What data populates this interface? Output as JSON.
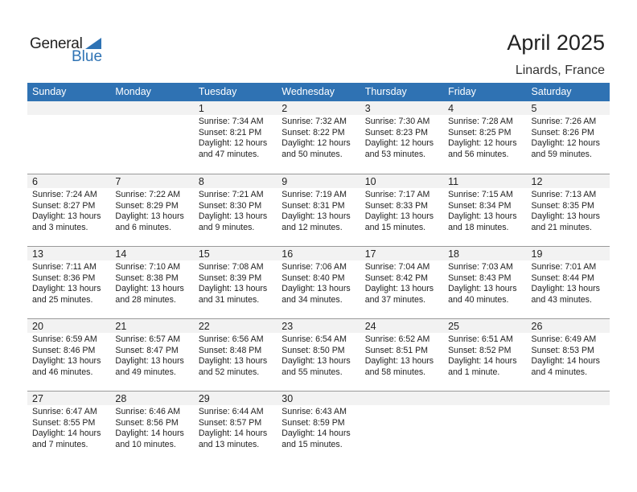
{
  "logo": {
    "line1": "General",
    "line2": "Blue"
  },
  "title": "April 2025",
  "location": "Linards, France",
  "weekdays": [
    "Sunday",
    "Monday",
    "Tuesday",
    "Wednesday",
    "Thursday",
    "Friday",
    "Saturday"
  ],
  "brand_color": "#2f72b3",
  "weeks": [
    [
      null,
      null,
      {
        "day": "1",
        "sunrise": "Sunrise: 7:34 AM",
        "sunset": "Sunset: 8:21 PM",
        "daylight": "Daylight: 12 hours",
        "minutes": "and 47 minutes."
      },
      {
        "day": "2",
        "sunrise": "Sunrise: 7:32 AM",
        "sunset": "Sunset: 8:22 PM",
        "daylight": "Daylight: 12 hours",
        "minutes": "and 50 minutes."
      },
      {
        "day": "3",
        "sunrise": "Sunrise: 7:30 AM",
        "sunset": "Sunset: 8:23 PM",
        "daylight": "Daylight: 12 hours",
        "minutes": "and 53 minutes."
      },
      {
        "day": "4",
        "sunrise": "Sunrise: 7:28 AM",
        "sunset": "Sunset: 8:25 PM",
        "daylight": "Daylight: 12 hours",
        "minutes": "and 56 minutes."
      },
      {
        "day": "5",
        "sunrise": "Sunrise: 7:26 AM",
        "sunset": "Sunset: 8:26 PM",
        "daylight": "Daylight: 12 hours",
        "minutes": "and 59 minutes."
      }
    ],
    [
      {
        "day": "6",
        "sunrise": "Sunrise: 7:24 AM",
        "sunset": "Sunset: 8:27 PM",
        "daylight": "Daylight: 13 hours",
        "minutes": "and 3 minutes."
      },
      {
        "day": "7",
        "sunrise": "Sunrise: 7:22 AM",
        "sunset": "Sunset: 8:29 PM",
        "daylight": "Daylight: 13 hours",
        "minutes": "and 6 minutes."
      },
      {
        "day": "8",
        "sunrise": "Sunrise: 7:21 AM",
        "sunset": "Sunset: 8:30 PM",
        "daylight": "Daylight: 13 hours",
        "minutes": "and 9 minutes."
      },
      {
        "day": "9",
        "sunrise": "Sunrise: 7:19 AM",
        "sunset": "Sunset: 8:31 PM",
        "daylight": "Daylight: 13 hours",
        "minutes": "and 12 minutes."
      },
      {
        "day": "10",
        "sunrise": "Sunrise: 7:17 AM",
        "sunset": "Sunset: 8:33 PM",
        "daylight": "Daylight: 13 hours",
        "minutes": "and 15 minutes."
      },
      {
        "day": "11",
        "sunrise": "Sunrise: 7:15 AM",
        "sunset": "Sunset: 8:34 PM",
        "daylight": "Daylight: 13 hours",
        "minutes": "and 18 minutes."
      },
      {
        "day": "12",
        "sunrise": "Sunrise: 7:13 AM",
        "sunset": "Sunset: 8:35 PM",
        "daylight": "Daylight: 13 hours",
        "minutes": "and 21 minutes."
      }
    ],
    [
      {
        "day": "13",
        "sunrise": "Sunrise: 7:11 AM",
        "sunset": "Sunset: 8:36 PM",
        "daylight": "Daylight: 13 hours",
        "minutes": "and 25 minutes."
      },
      {
        "day": "14",
        "sunrise": "Sunrise: 7:10 AM",
        "sunset": "Sunset: 8:38 PM",
        "daylight": "Daylight: 13 hours",
        "minutes": "and 28 minutes."
      },
      {
        "day": "15",
        "sunrise": "Sunrise: 7:08 AM",
        "sunset": "Sunset: 8:39 PM",
        "daylight": "Daylight: 13 hours",
        "minutes": "and 31 minutes."
      },
      {
        "day": "16",
        "sunrise": "Sunrise: 7:06 AM",
        "sunset": "Sunset: 8:40 PM",
        "daylight": "Daylight: 13 hours",
        "minutes": "and 34 minutes."
      },
      {
        "day": "17",
        "sunrise": "Sunrise: 7:04 AM",
        "sunset": "Sunset: 8:42 PM",
        "daylight": "Daylight: 13 hours",
        "minutes": "and 37 minutes."
      },
      {
        "day": "18",
        "sunrise": "Sunrise: 7:03 AM",
        "sunset": "Sunset: 8:43 PM",
        "daylight": "Daylight: 13 hours",
        "minutes": "and 40 minutes."
      },
      {
        "day": "19",
        "sunrise": "Sunrise: 7:01 AM",
        "sunset": "Sunset: 8:44 PM",
        "daylight": "Daylight: 13 hours",
        "minutes": "and 43 minutes."
      }
    ],
    [
      {
        "day": "20",
        "sunrise": "Sunrise: 6:59 AM",
        "sunset": "Sunset: 8:46 PM",
        "daylight": "Daylight: 13 hours",
        "minutes": "and 46 minutes."
      },
      {
        "day": "21",
        "sunrise": "Sunrise: 6:57 AM",
        "sunset": "Sunset: 8:47 PM",
        "daylight": "Daylight: 13 hours",
        "minutes": "and 49 minutes."
      },
      {
        "day": "22",
        "sunrise": "Sunrise: 6:56 AM",
        "sunset": "Sunset: 8:48 PM",
        "daylight": "Daylight: 13 hours",
        "minutes": "and 52 minutes."
      },
      {
        "day": "23",
        "sunrise": "Sunrise: 6:54 AM",
        "sunset": "Sunset: 8:50 PM",
        "daylight": "Daylight: 13 hours",
        "minutes": "and 55 minutes."
      },
      {
        "day": "24",
        "sunrise": "Sunrise: 6:52 AM",
        "sunset": "Sunset: 8:51 PM",
        "daylight": "Daylight: 13 hours",
        "minutes": "and 58 minutes."
      },
      {
        "day": "25",
        "sunrise": "Sunrise: 6:51 AM",
        "sunset": "Sunset: 8:52 PM",
        "daylight": "Daylight: 14 hours",
        "minutes": "and 1 minute."
      },
      {
        "day": "26",
        "sunrise": "Sunrise: 6:49 AM",
        "sunset": "Sunset: 8:53 PM",
        "daylight": "Daylight: 14 hours",
        "minutes": "and 4 minutes."
      }
    ],
    [
      {
        "day": "27",
        "sunrise": "Sunrise: 6:47 AM",
        "sunset": "Sunset: 8:55 PM",
        "daylight": "Daylight: 14 hours",
        "minutes": "and 7 minutes."
      },
      {
        "day": "28",
        "sunrise": "Sunrise: 6:46 AM",
        "sunset": "Sunset: 8:56 PM",
        "daylight": "Daylight: 14 hours",
        "minutes": "and 10 minutes."
      },
      {
        "day": "29",
        "sunrise": "Sunrise: 6:44 AM",
        "sunset": "Sunset: 8:57 PM",
        "daylight": "Daylight: 14 hours",
        "minutes": "and 13 minutes."
      },
      {
        "day": "30",
        "sunrise": "Sunrise: 6:43 AM",
        "sunset": "Sunset: 8:59 PM",
        "daylight": "Daylight: 14 hours",
        "minutes": "and 15 minutes."
      },
      null,
      null,
      null
    ]
  ]
}
